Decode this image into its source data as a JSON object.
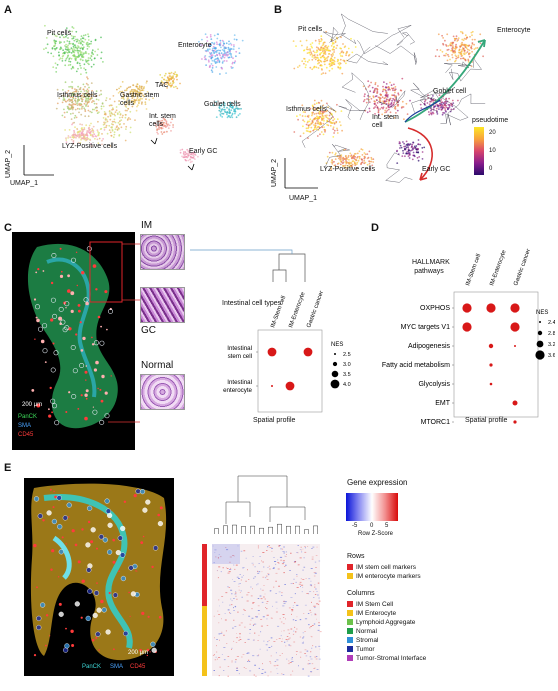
{
  "panels": {
    "a": "A",
    "b": "B",
    "c": "C",
    "d": "D",
    "e": "E"
  },
  "umap_a": {
    "labels": [
      "Pit cells",
      "Enterocyte",
      "TAC",
      "Gastric stem cells",
      "Isthmus cells",
      "Goblet cells",
      "Int. stem cells",
      "LYZ-Positive cells",
      "Early GC"
    ],
    "xlabel": "UMAP_1",
    "ylabel": "UMAP_2"
  },
  "umap_b": {
    "labels": [
      "Pit cells",
      "Enterocyte",
      "Goblet cell",
      "Isthmus cells",
      "Int. stem cell",
      "LYZ-Positive cells",
      "Early GC"
    ],
    "xlabel": "UMAP_1",
    "ylabel": "UMAP_2",
    "legend_title": "pseudotime",
    "legend_ticks": [
      "20",
      "10",
      "0"
    ]
  },
  "tissue_c": {
    "scale": "200 μm",
    "stains": [
      "PanCK",
      "SMA",
      "CD45"
    ],
    "stain_colors": [
      "#3ddc5a",
      "#4aa3ff",
      "#ff3b3b"
    ],
    "insets": [
      "IM",
      "GC",
      "Normal"
    ]
  },
  "chart_data": [
    {
      "type": "scatter",
      "panel": "C",
      "title": "",
      "xlabel": "Spatial profile",
      "ylabel": "Intestinal cell types",
      "categories": [
        "IM-Stem cell",
        "IM-Enterocyte",
        "Gastric cancer"
      ],
      "rows": [
        "Intestinal stem cell",
        "Intestinal enterocyte"
      ],
      "points": [
        {
          "x": "IM-Stem cell",
          "y": "Intestinal stem cell",
          "nes": 4.0
        },
        {
          "x": "Gastric cancer",
          "y": "Intestinal stem cell",
          "nes": 4.0
        },
        {
          "x": "IM-Stem cell",
          "y": "Intestinal enterocyte",
          "nes": 2.5
        },
        {
          "x": "IM-Enterocyte",
          "y": "Intestinal enterocyte",
          "nes": 4.0
        }
      ],
      "size_legend_title": "NES",
      "size_legend": [
        "2.5",
        "3.0",
        "3.5",
        "4.0"
      ],
      "size_legend_values": [
        2.5,
        3.0,
        3.5,
        4.0
      ]
    },
    {
      "type": "scatter",
      "panel": "D",
      "title": "",
      "xlabel": "Spatial profile",
      "ylabel": "HALLMARK pathways",
      "categories": [
        "IM-Stem cell",
        "IM-Enterocyte",
        "Gastric cancer"
      ],
      "rows": [
        "OXPHOS",
        "MYC targets V1",
        "Adipogenesis",
        "Fatty acid metabolism",
        "Glycolysis",
        "EMT",
        "MTORC1"
      ],
      "points": [
        {
          "x": "IM-Stem cell",
          "y": "OXPHOS",
          "nes": 3.6
        },
        {
          "x": "IM-Enterocyte",
          "y": "OXPHOS",
          "nes": 3.6
        },
        {
          "x": "Gastric cancer",
          "y": "OXPHOS",
          "nes": 3.6
        },
        {
          "x": "IM-Stem cell",
          "y": "MYC targets V1",
          "nes": 3.6
        },
        {
          "x": "Gastric cancer",
          "y": "MYC targets V1",
          "nes": 3.6
        },
        {
          "x": "IM-Enterocyte",
          "y": "Adipogenesis",
          "nes": 2.8
        },
        {
          "x": "Gastric cancer",
          "y": "Adipogenesis",
          "nes": 2.4
        },
        {
          "x": "IM-Enterocyte",
          "y": "Fatty acid metabolism",
          "nes": 2.6
        },
        {
          "x": "IM-Enterocyte",
          "y": "Glycolysis",
          "nes": 2.5
        },
        {
          "x": "Gastric cancer",
          "y": "EMT",
          "nes": 2.9
        },
        {
          "x": "Gastric cancer",
          "y": "MTORC1",
          "nes": 2.6
        }
      ],
      "size_legend_title": "NES",
      "size_legend": [
        "2.4",
        "2.8",
        "3.2",
        "3.6"
      ],
      "size_legend_values": [
        2.4,
        2.8,
        3.2,
        3.6
      ]
    }
  ],
  "tissue_e": {
    "scale": "200 μm",
    "stains": [
      "PanCK",
      "SMA",
      "CD45"
    ],
    "stain_colors": [
      "#3dd6d6",
      "#4aa3ff",
      "#ff3b3b"
    ]
  },
  "heatmap_e": {
    "legend_title": "Gene expression",
    "legend_label": "Row Z-Score",
    "legend_ticks": [
      "-5",
      "0",
      "5"
    ],
    "rows_title": "Rows",
    "rows": [
      {
        "label": "IM stem cell markers",
        "color": "#e0242a"
      },
      {
        "label": "IM enterocyte markers",
        "color": "#f4c21a"
      }
    ],
    "columns_title": "Columns",
    "columns": [
      {
        "label": "IM Stem Cell",
        "color": "#e0242a"
      },
      {
        "label": "IM Enterocyte",
        "color": "#f4c21a"
      },
      {
        "label": "Lymphoid Aggregate",
        "color": "#6cc24a"
      },
      {
        "label": "Normal",
        "color": "#1f9e4a"
      },
      {
        "label": "Stromal",
        "color": "#2f8fd8"
      },
      {
        "label": "Tumor",
        "color": "#1c2b9c"
      },
      {
        "label": "Tumor-Stromal Interface",
        "color": "#b03cb8"
      }
    ]
  }
}
